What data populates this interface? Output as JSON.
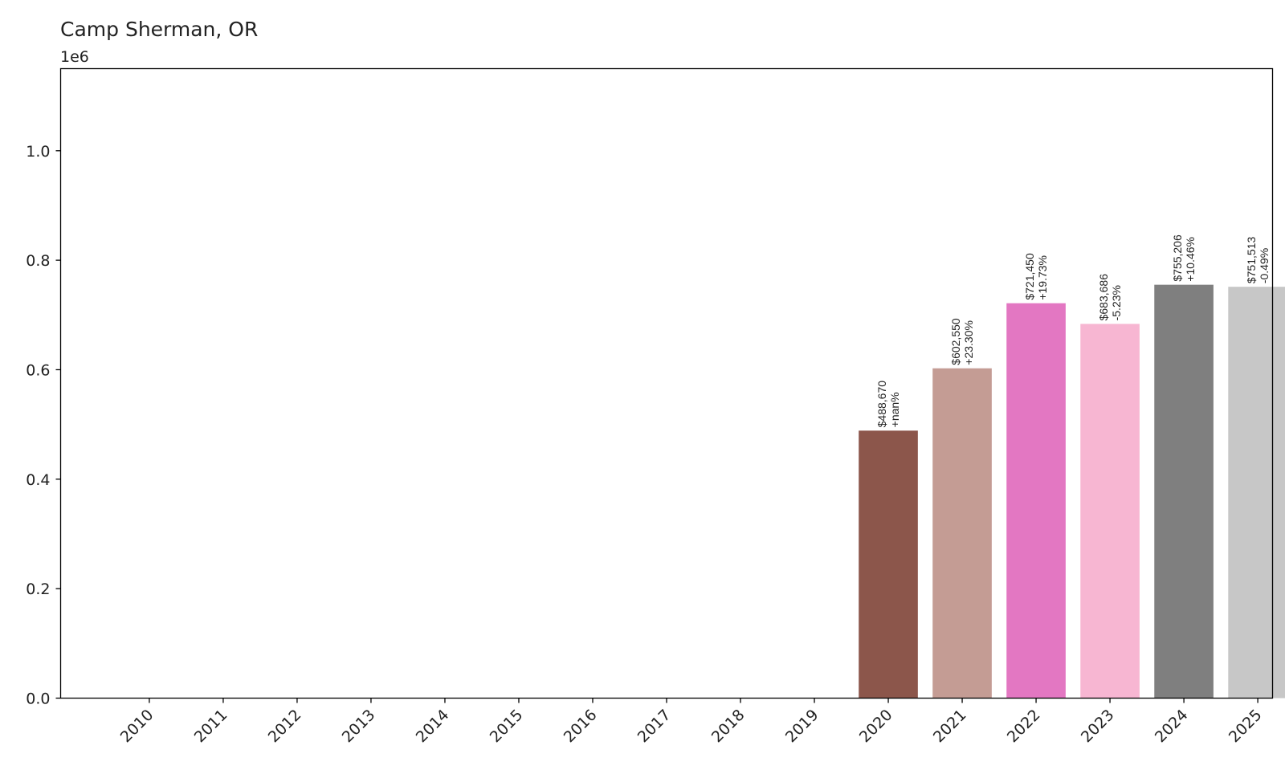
{
  "chart_data": {
    "type": "bar",
    "title": "Camp Sherman, OR",
    "xlabel": "",
    "ylabel": "",
    "y_offset_label": "1e6",
    "ylim": [
      0,
      1150000
    ],
    "grid": false,
    "categories": [
      "2010",
      "2011",
      "2012",
      "2013",
      "2014",
      "2015",
      "2016",
      "2017",
      "2018",
      "2019",
      "2020",
      "2021",
      "2022",
      "2023",
      "2024",
      "2025"
    ],
    "y_ticks": [
      {
        "value": 0,
        "label": "0.0"
      },
      {
        "value": 200000,
        "label": "0.2"
      },
      {
        "value": 400000,
        "label": "0.4"
      },
      {
        "value": 600000,
        "label": "0.6"
      },
      {
        "value": 800000,
        "label": "0.8"
      },
      {
        "value": 1000000,
        "label": "1.0"
      }
    ],
    "bars": [
      {
        "year": "2010",
        "value": 0,
        "price_label": "",
        "change_label": "",
        "color": "#1f77b4"
      },
      {
        "year": "2011",
        "value": 0,
        "price_label": "",
        "change_label": "",
        "color": "#ff7f0e"
      },
      {
        "year": "2012",
        "value": 0,
        "price_label": "",
        "change_label": "",
        "color": "#2ca02c"
      },
      {
        "year": "2013",
        "value": 0,
        "price_label": "",
        "change_label": "",
        "color": "#d62728"
      },
      {
        "year": "2014",
        "value": 0,
        "price_label": "",
        "change_label": "",
        "color": "#9467bd"
      },
      {
        "year": "2015",
        "value": 0,
        "price_label": "",
        "change_label": "",
        "color": "#8c564b"
      },
      {
        "year": "2016",
        "value": 0,
        "price_label": "",
        "change_label": "",
        "color": "#e377c2"
      },
      {
        "year": "2017",
        "value": 0,
        "price_label": "",
        "change_label": "",
        "color": "#7f7f7f"
      },
      {
        "year": "2018",
        "value": 0,
        "price_label": "",
        "change_label": "",
        "color": "#bcbd22"
      },
      {
        "year": "2019",
        "value": 0,
        "price_label": "",
        "change_label": "",
        "color": "#17becf"
      },
      {
        "year": "2020",
        "value": 488670,
        "price_label": "$488,670",
        "change_label": "+nan%",
        "color": "#8c564b"
      },
      {
        "year": "2021",
        "value": 602550,
        "price_label": "$602,550",
        "change_label": "+23.30%",
        "color": "#c49c94"
      },
      {
        "year": "2022",
        "value": 721450,
        "price_label": "$721,450",
        "change_label": "+19.73%",
        "color": "#e377c2"
      },
      {
        "year": "2023",
        "value": 683686,
        "price_label": "$683,686",
        "change_label": "-5.23%",
        "color": "#f7b6d2"
      },
      {
        "year": "2024",
        "value": 755206,
        "price_label": "$755,206",
        "change_label": "+10.46%",
        "color": "#7f7f7f"
      },
      {
        "year": "2025",
        "value": 751513,
        "price_label": "$751,513",
        "change_label": "-0.49%",
        "color": "#c7c7c7"
      }
    ]
  }
}
